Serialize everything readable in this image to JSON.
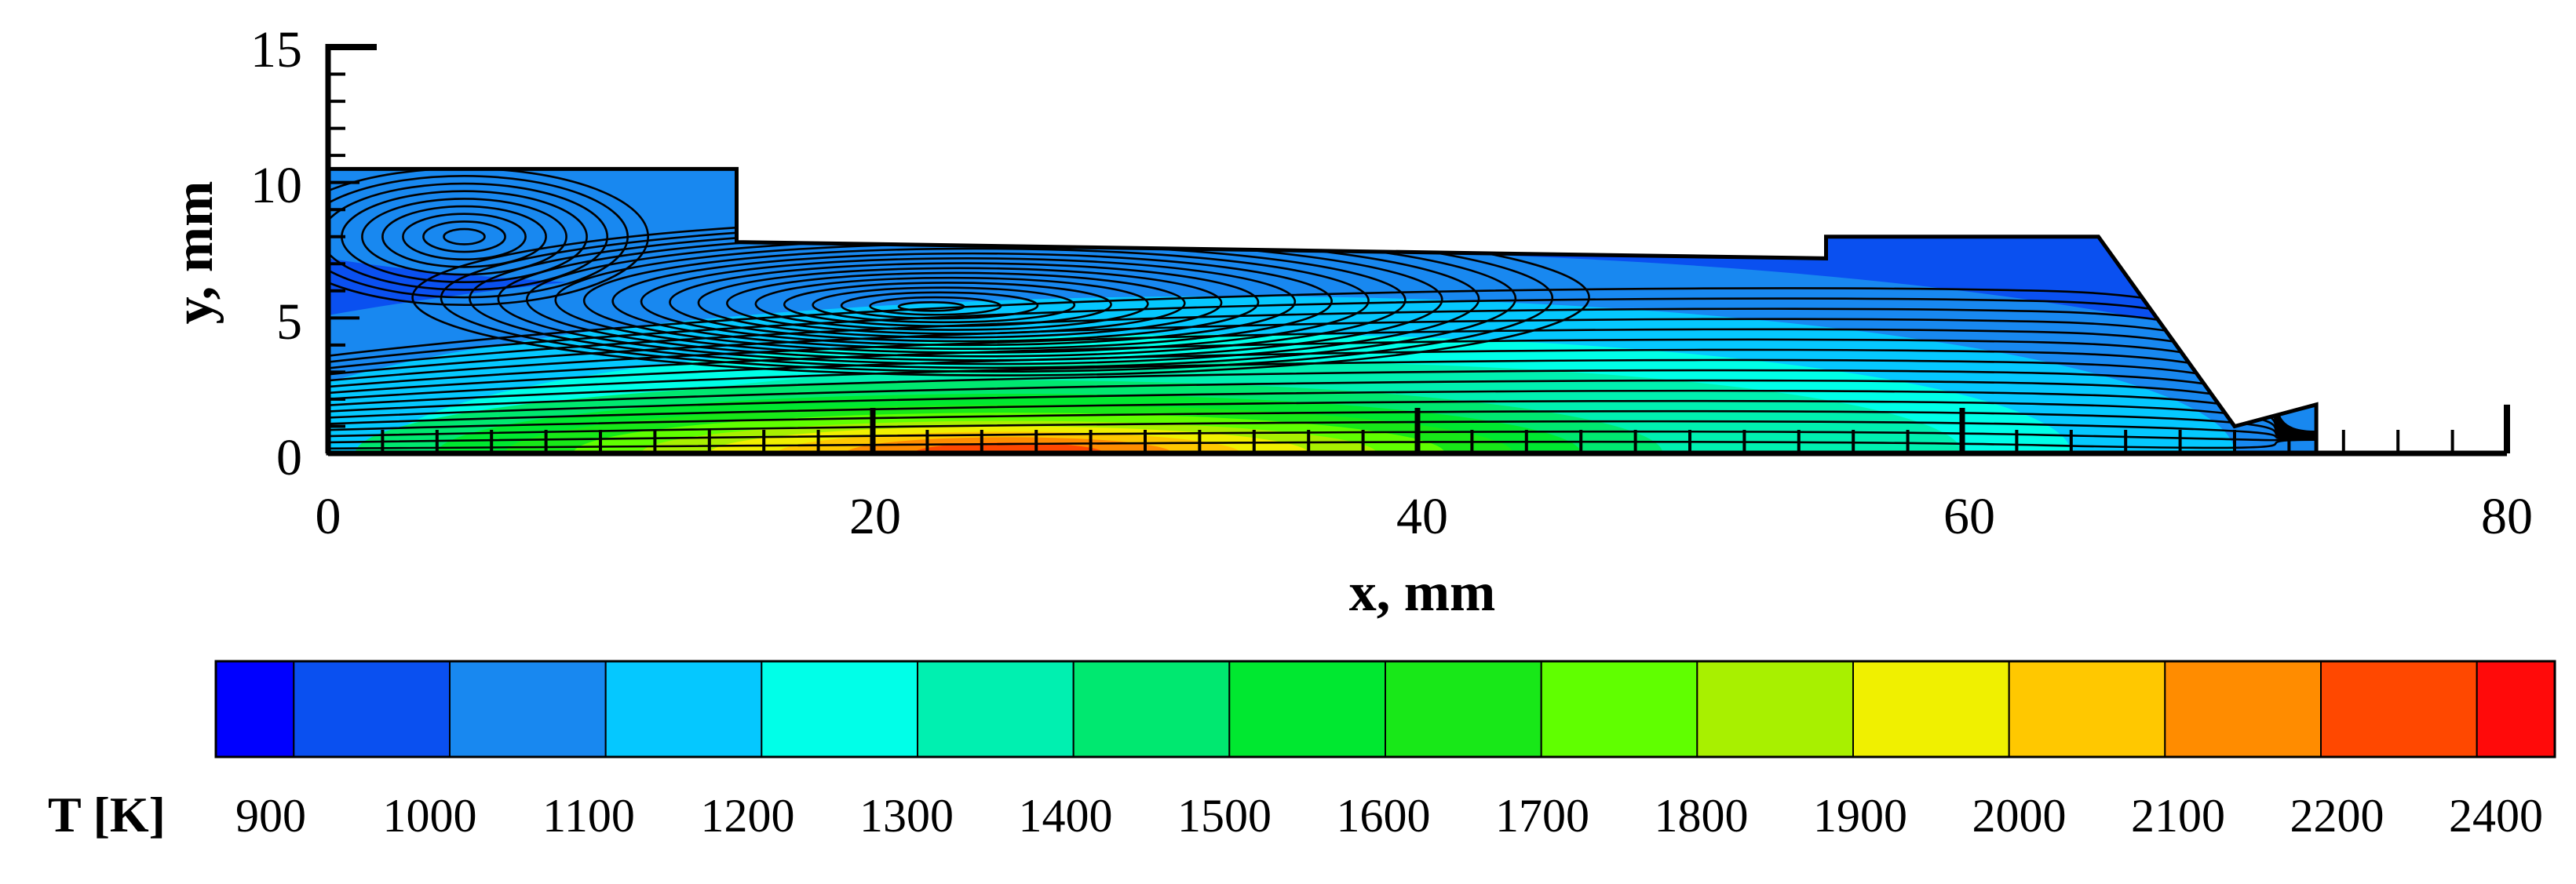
{
  "chart_data": {
    "type": "contour",
    "xlabel": "x, mm",
    "ylabel": "y, mm",
    "xlim": [
      0,
      80
    ],
    "ylim": [
      0,
      15
    ],
    "x_ticks": [
      "0",
      "20",
      "40",
      "60",
      "80"
    ],
    "y_ticks": [
      "0",
      "5",
      "10",
      "15"
    ],
    "colorbar": {
      "title": "T [K]",
      "levels": [
        "900",
        "1000",
        "1100",
        "1200",
        "1300",
        "1400",
        "1500",
        "1600",
        "1700",
        "1800",
        "1900",
        "2000",
        "2100",
        "2200",
        "2400"
      ],
      "colors": [
        "#0000ff",
        "#0a50f0",
        "#1888f0",
        "#05c8ff",
        "#00ffe8",
        "#00f0b0",
        "#00e870",
        "#00e830",
        "#18e818",
        "#60ff00",
        "#a8f000",
        "#f0f000",
        "#ffc800",
        "#ff8c00",
        "#ff4800",
        "#ff0a0a"
      ]
    },
    "domain_outline_mm": [
      [
        0,
        0
      ],
      [
        0,
        10.5
      ],
      [
        15,
        10.5
      ],
      [
        15,
        7.8
      ],
      [
        55,
        7.2
      ],
      [
        55,
        8
      ],
      [
        65,
        8
      ],
      [
        70,
        1
      ],
      [
        73,
        1.8
      ],
      [
        73,
        0
      ]
    ],
    "vortex_centers_mm": [
      [
        5,
        8
      ],
      [
        22,
        5.4
      ]
    ],
    "peak_temperature_region_mm": [
      25,
      0.7
    ]
  }
}
